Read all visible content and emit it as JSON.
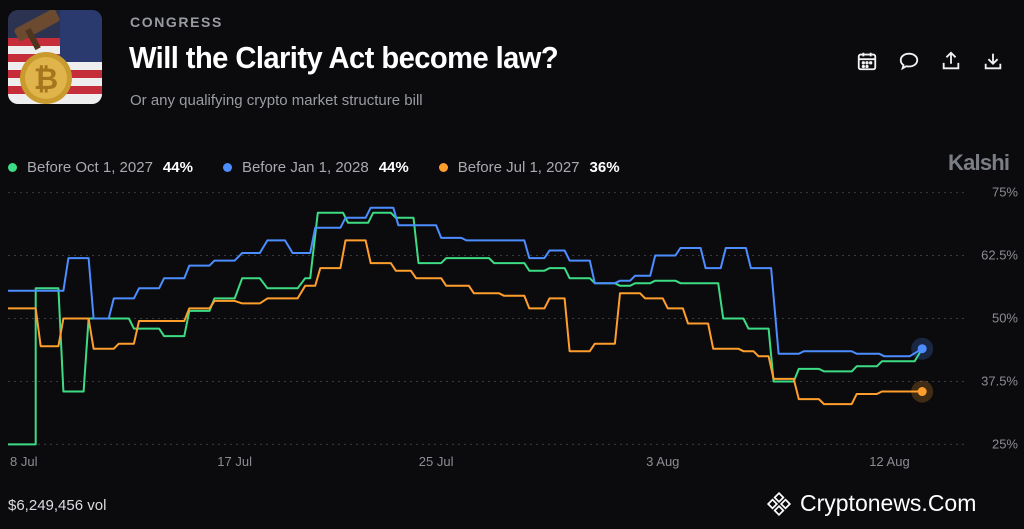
{
  "header": {
    "category": "CONGRESS",
    "title": "Will the Clarity Act become law?",
    "subtitle": "Or any qualifying crypto market structure bill"
  },
  "actions": [
    {
      "name": "calendar-icon"
    },
    {
      "name": "comment-icon"
    },
    {
      "name": "share-icon"
    },
    {
      "name": "download-icon"
    }
  ],
  "legend": [
    {
      "name": "Before Oct 1, 2027",
      "value": "44%",
      "color": "#3ddc84"
    },
    {
      "name": "Before Jan 1, 2028",
      "value": "44%",
      "color": "#4c8dff"
    },
    {
      "name": "Before Jul 1, 2027",
      "value": "36%",
      "color": "#ff9e2c"
    }
  ],
  "brand": "Kalshi",
  "footer": {
    "volume": "$6,249,456 vol",
    "watermark": "Cryptonews.Com"
  },
  "chart_data": {
    "type": "line",
    "ylim": [
      22.5,
      77.5
    ],
    "xlim": [
      0,
      38
    ],
    "y_ticks": [
      25,
      37.5,
      50,
      62.5,
      75
    ],
    "y_tick_labels": [
      "25%",
      "37.5%",
      "50%",
      "62.5%",
      "75%"
    ],
    "grid": true,
    "x_ticks": [
      {
        "label": "8 Jul",
        "x": 0
      },
      {
        "label": "17 Jul",
        "x": 9
      },
      {
        "label": "25 Jul",
        "x": 17
      },
      {
        "label": "3 Aug",
        "x": 26
      },
      {
        "label": "12 Aug",
        "x": 35
      }
    ],
    "series": [
      {
        "name": "Before Oct 1, 2027",
        "color": "#3ddc84",
        "points": [
          [
            0,
            25
          ],
          [
            1.1,
            25
          ],
          [
            1.1,
            56
          ],
          [
            2,
            56
          ],
          [
            2.2,
            35.5
          ],
          [
            3,
            35.5
          ],
          [
            3.2,
            50
          ],
          [
            4,
            50
          ],
          [
            4.8,
            50
          ],
          [
            5,
            48
          ],
          [
            6,
            48
          ],
          [
            6.2,
            46.5
          ],
          [
            7,
            46.5
          ],
          [
            7.2,
            51.5
          ],
          [
            8,
            51.5
          ],
          [
            8.2,
            54
          ],
          [
            9,
            54
          ],
          [
            9.3,
            58
          ],
          [
            10,
            58
          ],
          [
            10.3,
            56
          ],
          [
            11.5,
            56
          ],
          [
            11.8,
            58
          ],
          [
            12,
            58
          ],
          [
            12.3,
            71
          ],
          [
            13.3,
            71
          ],
          [
            13.5,
            69
          ],
          [
            14.3,
            69
          ],
          [
            14.5,
            71
          ],
          [
            15.2,
            71
          ],
          [
            15.4,
            70
          ],
          [
            16.1,
            70
          ],
          [
            16.3,
            61
          ],
          [
            17.2,
            61
          ],
          [
            17.4,
            62
          ],
          [
            19.1,
            62
          ],
          [
            19.3,
            61
          ],
          [
            20.5,
            61
          ],
          [
            20.7,
            59.5
          ],
          [
            21.3,
            59.5
          ],
          [
            21.5,
            60
          ],
          [
            22.1,
            60
          ],
          [
            22.3,
            58
          ],
          [
            23.1,
            58
          ],
          [
            23.3,
            57
          ],
          [
            24.1,
            57
          ],
          [
            24.3,
            56.5
          ],
          [
            24.7,
            56.5
          ],
          [
            24.9,
            57
          ],
          [
            25.5,
            57
          ],
          [
            25.7,
            57.5
          ],
          [
            26.5,
            57.5
          ],
          [
            26.7,
            57
          ],
          [
            28.2,
            57
          ],
          [
            28.4,
            50
          ],
          [
            29.2,
            50
          ],
          [
            29.4,
            48
          ],
          [
            30.2,
            48
          ],
          [
            30.4,
            37.5
          ],
          [
            31.2,
            37.5
          ],
          [
            31.4,
            40
          ],
          [
            32.2,
            40
          ],
          [
            32.4,
            39.5
          ],
          [
            33.5,
            39.5
          ],
          [
            33.7,
            40.5
          ],
          [
            34.5,
            40.5
          ],
          [
            34.7,
            41.5
          ],
          [
            36,
            41.5
          ],
          [
            36.3,
            44
          ]
        ]
      },
      {
        "name": "Before Jan 1, 2028",
        "color": "#4c8dff",
        "points": [
          [
            0,
            55.5
          ],
          [
            2.2,
            55.5
          ],
          [
            2.4,
            62
          ],
          [
            3.2,
            62
          ],
          [
            3.4,
            50
          ],
          [
            4,
            50
          ],
          [
            4.2,
            54
          ],
          [
            5,
            54
          ],
          [
            5.2,
            56
          ],
          [
            6,
            56
          ],
          [
            6.2,
            58
          ],
          [
            7,
            58
          ],
          [
            7.2,
            60.5
          ],
          [
            8,
            60.5
          ],
          [
            8.2,
            61.5
          ],
          [
            9,
            61.5
          ],
          [
            9.3,
            63
          ],
          [
            10,
            63
          ],
          [
            10.3,
            65.5
          ],
          [
            11,
            65.5
          ],
          [
            11.3,
            63
          ],
          [
            12,
            63
          ],
          [
            12.2,
            68
          ],
          [
            13.2,
            68
          ],
          [
            13.4,
            70
          ],
          [
            14.2,
            70
          ],
          [
            14.4,
            72
          ],
          [
            15.3,
            72
          ],
          [
            15.5,
            68.5
          ],
          [
            17,
            68.5
          ],
          [
            17.2,
            66
          ],
          [
            18,
            66
          ],
          [
            18.2,
            65.5
          ],
          [
            20.5,
            65.5
          ],
          [
            20.7,
            62
          ],
          [
            21.3,
            62
          ],
          [
            21.5,
            63.5
          ],
          [
            22.1,
            63.5
          ],
          [
            22.3,
            61.5
          ],
          [
            23.1,
            61.5
          ],
          [
            23.3,
            57
          ],
          [
            24.1,
            57
          ],
          [
            24.3,
            57.5
          ],
          [
            24.7,
            57.5
          ],
          [
            24.9,
            58.5
          ],
          [
            25.5,
            58.5
          ],
          [
            25.7,
            62.5
          ],
          [
            26.5,
            62.5
          ],
          [
            26.7,
            64
          ],
          [
            27.5,
            64
          ],
          [
            27.7,
            60
          ],
          [
            28.3,
            60
          ],
          [
            28.5,
            64
          ],
          [
            29.3,
            64
          ],
          [
            29.5,
            60
          ],
          [
            30.3,
            60
          ],
          [
            30.6,
            43
          ],
          [
            31.4,
            43
          ],
          [
            31.6,
            43.5
          ],
          [
            33.5,
            43.5
          ],
          [
            33.7,
            43
          ],
          [
            34.6,
            43
          ],
          [
            34.8,
            42.5
          ],
          [
            35.8,
            42.5
          ],
          [
            36.3,
            44
          ]
        ]
      },
      {
        "name": "Before Jul 1, 2027",
        "color": "#ff9e2c",
        "points": [
          [
            0,
            52
          ],
          [
            1.1,
            52
          ],
          [
            1.3,
            44.5
          ],
          [
            2,
            44.5
          ],
          [
            2.2,
            50
          ],
          [
            3.2,
            50
          ],
          [
            3.4,
            44
          ],
          [
            4.2,
            44
          ],
          [
            4.4,
            45
          ],
          [
            5,
            45
          ],
          [
            5.2,
            49.5
          ],
          [
            6,
            49.5
          ],
          [
            6.2,
            49.5
          ],
          [
            7,
            49.5
          ],
          [
            7.2,
            52
          ],
          [
            8,
            52
          ],
          [
            8.2,
            53.5
          ],
          [
            9,
            53.5
          ],
          [
            9.3,
            53
          ],
          [
            10,
            53
          ],
          [
            10.3,
            54
          ],
          [
            11.5,
            54
          ],
          [
            11.8,
            56.5
          ],
          [
            12.2,
            56.5
          ],
          [
            12.4,
            60
          ],
          [
            13.2,
            60
          ],
          [
            13.4,
            65.5
          ],
          [
            14.2,
            65.5
          ],
          [
            14.4,
            61
          ],
          [
            15.2,
            61
          ],
          [
            15.4,
            59.5
          ],
          [
            16,
            59.5
          ],
          [
            16.2,
            58
          ],
          [
            17.2,
            58
          ],
          [
            17.4,
            56.5
          ],
          [
            18.3,
            56.5
          ],
          [
            18.5,
            55
          ],
          [
            19.5,
            55
          ],
          [
            19.7,
            54.5
          ],
          [
            20.5,
            54.5
          ],
          [
            20.7,
            52
          ],
          [
            21.3,
            52
          ],
          [
            21.5,
            54
          ],
          [
            22.1,
            54
          ],
          [
            22.3,
            43.5
          ],
          [
            23.1,
            43.5
          ],
          [
            23.3,
            45
          ],
          [
            24.1,
            45
          ],
          [
            24.3,
            55
          ],
          [
            25.1,
            55
          ],
          [
            25.3,
            54
          ],
          [
            26,
            54
          ],
          [
            26.2,
            52
          ],
          [
            26.8,
            52
          ],
          [
            27,
            49
          ],
          [
            27.8,
            49
          ],
          [
            28,
            44
          ],
          [
            29,
            44
          ],
          [
            29.2,
            43.5
          ],
          [
            29.6,
            43.5
          ],
          [
            29.8,
            42.5
          ],
          [
            30.2,
            42.5
          ],
          [
            30.4,
            38
          ],
          [
            31.2,
            38
          ],
          [
            31.4,
            34
          ],
          [
            32.2,
            34
          ],
          [
            32.4,
            33
          ],
          [
            33.5,
            33
          ],
          [
            33.7,
            35
          ],
          [
            34.5,
            35
          ],
          [
            34.7,
            35.5
          ],
          [
            36.3,
            35.5
          ]
        ]
      }
    ]
  }
}
